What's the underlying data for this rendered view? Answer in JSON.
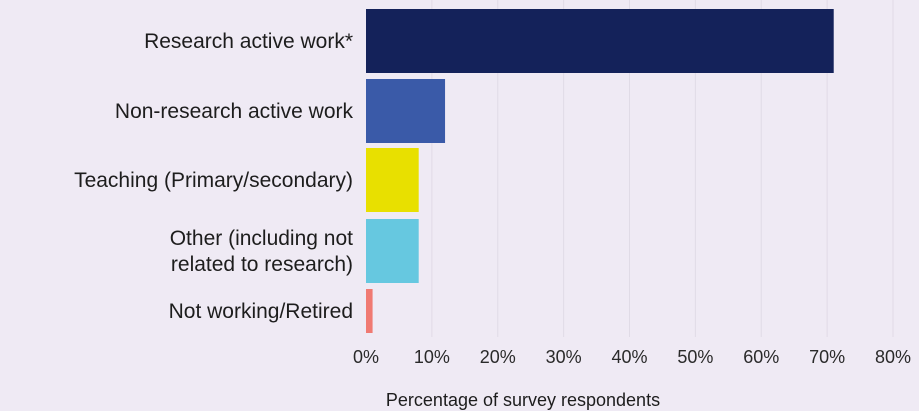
{
  "chart_data": {
    "type": "bar",
    "orientation": "horizontal",
    "categories": [
      [
        "Research active work*"
      ],
      [
        "Non-research active work"
      ],
      [
        "Teaching (Primary/secondary)"
      ],
      [
        "Other (including not",
        "related to research)"
      ],
      [
        "Not working/Retired"
      ]
    ],
    "values": [
      71,
      12,
      8,
      8,
      1
    ],
    "colors": [
      "#14225a",
      "#3a5aa8",
      "#e8e000",
      "#66c8e0",
      "#f07a72"
    ],
    "xlabel": "Percentage of survey respondents",
    "xlim": [
      0,
      80
    ],
    "xticks": [
      0,
      10,
      20,
      30,
      40,
      50,
      60,
      70,
      80
    ],
    "xtick_labels": [
      "0%",
      "10%",
      "20%",
      "30%",
      "40%",
      "50%",
      "60%",
      "70%",
      "80%"
    ],
    "grid": true
  }
}
